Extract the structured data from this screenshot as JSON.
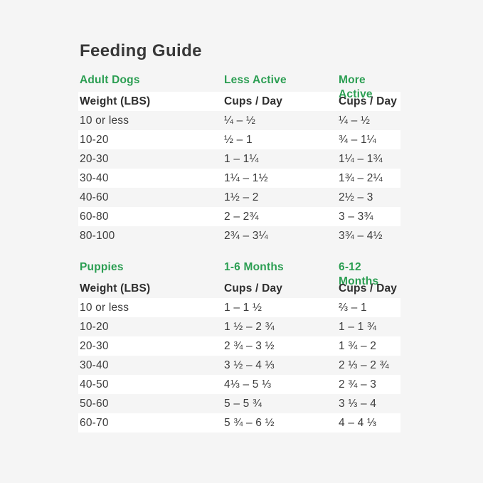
{
  "page": {
    "title": "Feeding Guide",
    "colors": {
      "background": "#f5f5f5",
      "row_highlight": "#ffffff",
      "accent_green": "#2b9e52",
      "heading_text": "#383838",
      "body_text": "#3c3c3c"
    }
  },
  "tables": [
    {
      "section_label": "Adult Dogs",
      "col_labels": [
        "Less Active",
        "More Active"
      ],
      "header": [
        "Weight (LBS)",
        "Cups / Day",
        "Cups / Day"
      ],
      "rows": [
        [
          "10 or less",
          "¼ – ½",
          "¼ – ½"
        ],
        [
          "10-20",
          "½ – 1",
          "¾ – 1¼"
        ],
        [
          "20-30",
          "1 – 1¼",
          "1¼ – 1¾"
        ],
        [
          "30-40",
          "1¼ – 1½",
          "1¾ – 2¼"
        ],
        [
          "40-60",
          "1½ – 2",
          "2½ – 3"
        ],
        [
          "60-80",
          "2 – 2¾",
          "3 – 3¾"
        ],
        [
          "80-100",
          "2¾ – 3¼",
          "3¾ – 4½"
        ]
      ]
    },
    {
      "section_label": "Puppies",
      "col_labels": [
        "1-6 Months",
        "6-12 Months"
      ],
      "header": [
        "Weight (LBS)",
        "Cups / Day",
        "Cups / Day"
      ],
      "rows": [
        [
          "10 or less",
          "1 – 1 ½",
          "⅔ – 1"
        ],
        [
          "10-20",
          "1 ½ – 2 ¾",
          "1 – 1 ¾"
        ],
        [
          "20-30",
          "2 ¾ – 3 ½",
          "1 ¾ – 2"
        ],
        [
          "30-40",
          "3 ½ – 4 ⅓",
          "2 ⅓ – 2 ¾"
        ],
        [
          "40-50",
          "4⅓ – 5 ⅓",
          "2 ¾ – 3"
        ],
        [
          "50-60",
          "5 – 5 ¾",
          "3 ⅓ – 4"
        ],
        [
          "60-70",
          "5 ¾ – 6 ½",
          "4 – 4 ⅓"
        ]
      ]
    }
  ]
}
